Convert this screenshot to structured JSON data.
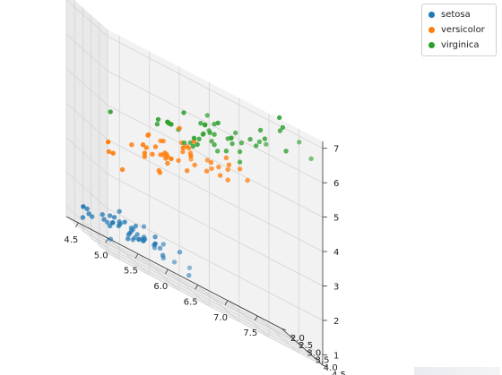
{
  "chart_data": {
    "type": "scatter",
    "subtype": "3d-scatter",
    "title": "",
    "xlabel": "",
    "ylabel": "",
    "zlabel": "",
    "xlim": [
      4.3,
      7.9
    ],
    "ylim": [
      2.0,
      4.5
    ],
    "zlim": [
      0.7,
      7.2
    ],
    "x_ticks": [
      "4.5",
      "5.0",
      "5.5",
      "6.0",
      "6.5",
      "7.0",
      "7.5"
    ],
    "y_ticks": [
      "2.0",
      "2.5",
      "3.0",
      "3.5",
      "4.0",
      "4.5"
    ],
    "z_ticks": [
      "1",
      "2",
      "3",
      "4",
      "5",
      "6",
      "7"
    ],
    "grid": true,
    "legend_position": "top-right",
    "series": [
      {
        "name": "setosa",
        "color": "#1f77b4",
        "points": [
          [
            4.3,
            3.0,
            1.1
          ],
          [
            4.4,
            2.9,
            1.4
          ],
          [
            4.4,
            3.0,
            1.3
          ],
          [
            4.4,
            3.2,
            1.3
          ],
          [
            4.5,
            2.3,
            1.3
          ],
          [
            4.6,
            3.1,
            1.5
          ],
          [
            4.6,
            3.4,
            1.4
          ],
          [
            4.6,
            3.6,
            1.0
          ],
          [
            4.6,
            3.2,
            1.4
          ],
          [
            4.7,
            3.2,
            1.3
          ],
          [
            4.7,
            3.2,
            1.6
          ],
          [
            4.8,
            3.4,
            1.6
          ],
          [
            4.8,
            3.0,
            1.4
          ],
          [
            4.8,
            3.4,
            1.9
          ],
          [
            4.8,
            3.1,
            1.6
          ],
          [
            4.8,
            3.0,
            1.4
          ],
          [
            4.9,
            3.0,
            1.4
          ],
          [
            4.9,
            3.1,
            1.5
          ],
          [
            4.9,
            3.6,
            1.4
          ],
          [
            5.0,
            3.6,
            1.4
          ],
          [
            5.0,
            3.4,
            1.5
          ],
          [
            5.0,
            3.0,
            1.6
          ],
          [
            5.0,
            3.4,
            1.6
          ],
          [
            5.0,
            3.2,
            1.2
          ],
          [
            5.0,
            3.5,
            1.3
          ],
          [
            5.0,
            3.5,
            1.6
          ],
          [
            5.0,
            3.3,
            1.4
          ],
          [
            5.1,
            3.5,
            1.4
          ],
          [
            5.1,
            3.5,
            1.4
          ],
          [
            5.1,
            3.8,
            1.5
          ],
          [
            5.1,
            3.7,
            1.5
          ],
          [
            5.1,
            3.3,
            1.7
          ],
          [
            5.1,
            3.4,
            1.5
          ],
          [
            5.1,
            3.8,
            1.9
          ],
          [
            5.1,
            3.8,
            1.6
          ],
          [
            5.2,
            3.5,
            1.5
          ],
          [
            5.2,
            3.4,
            1.4
          ],
          [
            5.2,
            4.1,
            1.5
          ],
          [
            5.3,
            3.7,
            1.5
          ],
          [
            5.4,
            3.9,
            1.7
          ],
          [
            5.4,
            3.7,
            1.5
          ],
          [
            5.4,
            3.9,
            1.3
          ],
          [
            5.4,
            3.4,
            1.7
          ],
          [
            5.4,
            3.4,
            1.5
          ],
          [
            5.5,
            4.2,
            1.4
          ],
          [
            5.5,
            3.5,
            1.3
          ],
          [
            5.7,
            4.4,
            1.5
          ],
          [
            5.7,
            3.8,
            1.7
          ],
          [
            5.8,
            4.0,
            1.2
          ],
          [
            5.4,
            3.4,
            1.5
          ]
        ]
      },
      {
        "name": "versicolor",
        "color": "#ff7f0e",
        "points": [
          [
            4.9,
            2.4,
            3.3
          ],
          [
            5.0,
            2.0,
            3.5
          ],
          [
            5.0,
            2.3,
            3.3
          ],
          [
            5.1,
            2.5,
            3.0
          ],
          [
            5.2,
            2.7,
            3.9
          ],
          [
            5.4,
            3.0,
            4.5
          ],
          [
            5.5,
            2.3,
            4.0
          ],
          [
            5.5,
            2.4,
            3.8
          ],
          [
            5.5,
            2.4,
            3.7
          ],
          [
            5.5,
            2.5,
            4.0
          ],
          [
            5.5,
            2.6,
            4.4
          ],
          [
            5.6,
            2.9,
            3.6
          ],
          [
            5.6,
            3.0,
            4.5
          ],
          [
            5.6,
            2.5,
            3.9
          ],
          [
            5.6,
            3.0,
            4.1
          ],
          [
            5.6,
            2.7,
            4.2
          ],
          [
            5.7,
            2.8,
            4.5
          ],
          [
            5.7,
            2.6,
            3.5
          ],
          [
            5.7,
            3.0,
            4.2
          ],
          [
            5.7,
            2.9,
            4.2
          ],
          [
            5.7,
            2.8,
            4.1
          ],
          [
            5.8,
            2.7,
            4.1
          ],
          [
            5.8,
            2.7,
            3.9
          ],
          [
            5.8,
            2.6,
            4.0
          ],
          [
            5.9,
            3.0,
            4.2
          ],
          [
            5.9,
            3.2,
            4.8
          ],
          [
            6.0,
            2.2,
            4.0
          ],
          [
            6.0,
            2.9,
            4.5
          ],
          [
            6.0,
            2.7,
            5.1
          ],
          [
            6.0,
            3.4,
            4.5
          ],
          [
            6.1,
            2.9,
            4.7
          ],
          [
            6.1,
            2.8,
            4.0
          ],
          [
            6.1,
            2.8,
            4.7
          ],
          [
            6.1,
            3.0,
            4.6
          ],
          [
            6.2,
            2.2,
            4.5
          ],
          [
            6.2,
            2.9,
            4.3
          ],
          [
            6.3,
            3.3,
            4.7
          ],
          [
            6.3,
            2.5,
            4.9
          ],
          [
            6.3,
            2.3,
            4.4
          ],
          [
            6.4,
            3.2,
            4.5
          ],
          [
            6.4,
            2.9,
            4.3
          ],
          [
            6.5,
            2.8,
            4.6
          ],
          [
            6.6,
            2.9,
            4.6
          ],
          [
            6.6,
            3.0,
            4.4
          ],
          [
            6.7,
            3.1,
            4.4
          ],
          [
            6.7,
            3.0,
            5.0
          ],
          [
            6.7,
            3.1,
            4.7
          ],
          [
            6.8,
            2.8,
            4.8
          ],
          [
            6.9,
            3.1,
            4.9
          ],
          [
            7.0,
            3.2,
            4.7
          ]
        ]
      },
      {
        "name": "virginica",
        "color": "#2ca02c",
        "points": [
          [
            4.9,
            2.5,
            4.5
          ],
          [
            5.6,
            2.8,
            4.9
          ],
          [
            5.7,
            2.5,
            5.0
          ],
          [
            5.8,
            2.7,
            5.1
          ],
          [
            5.8,
            2.8,
            5.1
          ],
          [
            5.8,
            2.7,
            5.1
          ],
          [
            5.9,
            3.0,
            5.1
          ],
          [
            6.0,
            2.2,
            5.0
          ],
          [
            6.0,
            3.0,
            4.8
          ],
          [
            6.1,
            3.0,
            4.9
          ],
          [
            6.1,
            2.6,
            5.6
          ],
          [
            6.2,
            2.8,
            4.8
          ],
          [
            6.2,
            3.4,
            5.4
          ],
          [
            6.3,
            3.3,
            6.0
          ],
          [
            6.3,
            2.9,
            5.6
          ],
          [
            6.3,
            2.5,
            5.0
          ],
          [
            6.3,
            2.7,
            4.9
          ],
          [
            6.3,
            2.8,
            5.1
          ],
          [
            6.3,
            3.4,
            5.6
          ],
          [
            6.4,
            2.7,
            5.3
          ],
          [
            6.4,
            3.2,
            5.3
          ],
          [
            6.4,
            2.8,
            5.6
          ],
          [
            6.4,
            2.8,
            5.6
          ],
          [
            6.4,
            3.1,
            5.5
          ],
          [
            6.5,
            3.0,
            5.8
          ],
          [
            6.5,
            3.2,
            5.1
          ],
          [
            6.5,
            3.0,
            5.5
          ],
          [
            6.5,
            3.0,
            5.2
          ],
          [
            6.7,
            2.5,
            5.8
          ],
          [
            6.7,
            3.3,
            5.7
          ],
          [
            6.7,
            3.1,
            5.6
          ],
          [
            6.7,
            3.3,
            5.7
          ],
          [
            6.7,
            3.0,
            5.2
          ],
          [
            6.8,
            3.0,
            5.5
          ],
          [
            6.8,
            3.2,
            5.9
          ],
          [
            6.9,
            3.2,
            5.7
          ],
          [
            6.9,
            3.1,
            5.4
          ],
          [
            6.9,
            3.1,
            5.1
          ],
          [
            7.1,
            3.0,
            5.9
          ],
          [
            7.2,
            3.6,
            6.1
          ],
          [
            7.2,
            3.2,
            6.0
          ],
          [
            7.2,
            3.0,
            5.8
          ],
          [
            7.3,
            2.9,
            6.3
          ],
          [
            7.4,
            2.8,
            6.1
          ],
          [
            7.6,
            3.0,
            6.6
          ],
          [
            7.7,
            3.8,
            6.7
          ],
          [
            7.7,
            2.6,
            6.9
          ],
          [
            7.7,
            2.8,
            6.7
          ],
          [
            7.7,
            3.0,
            6.1
          ],
          [
            7.9,
            3.8,
            6.4
          ]
        ]
      }
    ]
  }
}
